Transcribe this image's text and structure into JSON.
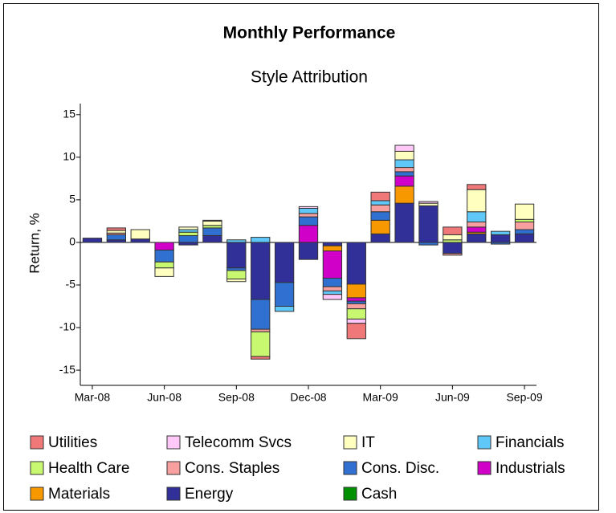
{
  "chart_data": {
    "type": "stacked-bar",
    "title": "Monthly Performance",
    "subtitle": "Style Attribution",
    "y_label": "Return, %",
    "categories": [
      "Mar-08",
      null,
      null,
      "Jun-08",
      null,
      null,
      "Sep-08",
      null,
      null,
      "Dec-08",
      null,
      null,
      "Mar-09",
      null,
      null,
      "Jun-09",
      null,
      null,
      "Sep-09"
    ],
    "ylim": [
      -16.5,
      16.3
    ],
    "yticks": [
      -15,
      -10,
      -5,
      0,
      5,
      10,
      15
    ],
    "series": [
      {
        "name": "Utilities",
        "color": "#f07878",
        "values": [
          0,
          0.3,
          0,
          0,
          0,
          0.1,
          0,
          -0.3,
          0,
          0,
          0,
          -1.8,
          1.0,
          0,
          0,
          0.9,
          0.6,
          0,
          0
        ]
      },
      {
        "name": "Telecomm Svcs",
        "color": "#ffc8f8",
        "values": [
          0,
          0,
          0,
          0,
          0,
          0,
          0,
          0,
          0,
          0.2,
          -0.6,
          -0.5,
          0,
          0.7,
          0.2,
          0,
          0,
          0,
          0
        ]
      },
      {
        "name": "IT",
        "color": "#ffffc0",
        "values": [
          0,
          0.3,
          1.1,
          -1.0,
          0.3,
          0.5,
          -0.3,
          0,
          0,
          0,
          0,
          0,
          0,
          1.0,
          0.3,
          0.6,
          2.6,
          0,
          1.8
        ]
      },
      {
        "name": "Financials",
        "color": "#60c8f8",
        "values": [
          0,
          0,
          0,
          0,
          0.3,
          0,
          0.3,
          0.6,
          -0.6,
          0.6,
          -0.4,
          0,
          0.5,
          0.9,
          0,
          0,
          1.2,
          0.4,
          0
        ]
      },
      {
        "name": "Health Care",
        "color": "#c8f870",
        "values": [
          0,
          0,
          0,
          -0.7,
          0.4,
          0.3,
          -1.0,
          -2.9,
          0,
          0,
          0,
          -1.2,
          0,
          0,
          0,
          0.3,
          0,
          0,
          0.3
        ]
      },
      {
        "name": "Cons. Staples",
        "color": "#f8a0a0",
        "values": [
          0,
          0.2,
          0,
          0,
          0,
          0,
          0,
          -0.3,
          0,
          0.4,
          -0.5,
          -0.6,
          0.8,
          0.5,
          0,
          -0.2,
          0.6,
          0,
          0.9
        ]
      },
      {
        "name": "Cons. Disc.",
        "color": "#3070d0",
        "values": [
          0,
          0.6,
          0,
          -1.4,
          0.8,
          0.9,
          -0.3,
          -3.5,
          -2.8,
          1.0,
          -1.0,
          -0.3,
          1.0,
          0.5,
          -0.3,
          0,
          0,
          -0.2,
          0.5
        ]
      },
      {
        "name": "Industrials",
        "color": "#d000c8",
        "values": [
          0,
          0,
          0,
          -0.9,
          0,
          0,
          0,
          0,
          0,
          2.0,
          -3.2,
          -0.4,
          0,
          1.2,
          0,
          0,
          0.6,
          0,
          0
        ]
      },
      {
        "name": "Materials",
        "color": "#f89800",
        "values": [
          0,
          0,
          0,
          0,
          0,
          0,
          0,
          0,
          0,
          0,
          -0.6,
          -1.6,
          1.6,
          2.0,
          0,
          0,
          0.2,
          0,
          0
        ]
      },
      {
        "name": "Energy",
        "color": "#303098",
        "values": [
          0.5,
          0.3,
          0.4,
          0,
          -0.3,
          0.8,
          -3.0,
          -6.7,
          -4.7,
          -2.0,
          -0.4,
          -4.9,
          1.0,
          4.6,
          4.3,
          -1.3,
          1.0,
          0.9,
          1.0
        ]
      },
      {
        "name": "Cash",
        "color": "#009000",
        "values": [
          0,
          0,
          0,
          0,
          0,
          0,
          0,
          0,
          0,
          0,
          0,
          0,
          0,
          0,
          0,
          0,
          0,
          0,
          0
        ]
      }
    ]
  }
}
